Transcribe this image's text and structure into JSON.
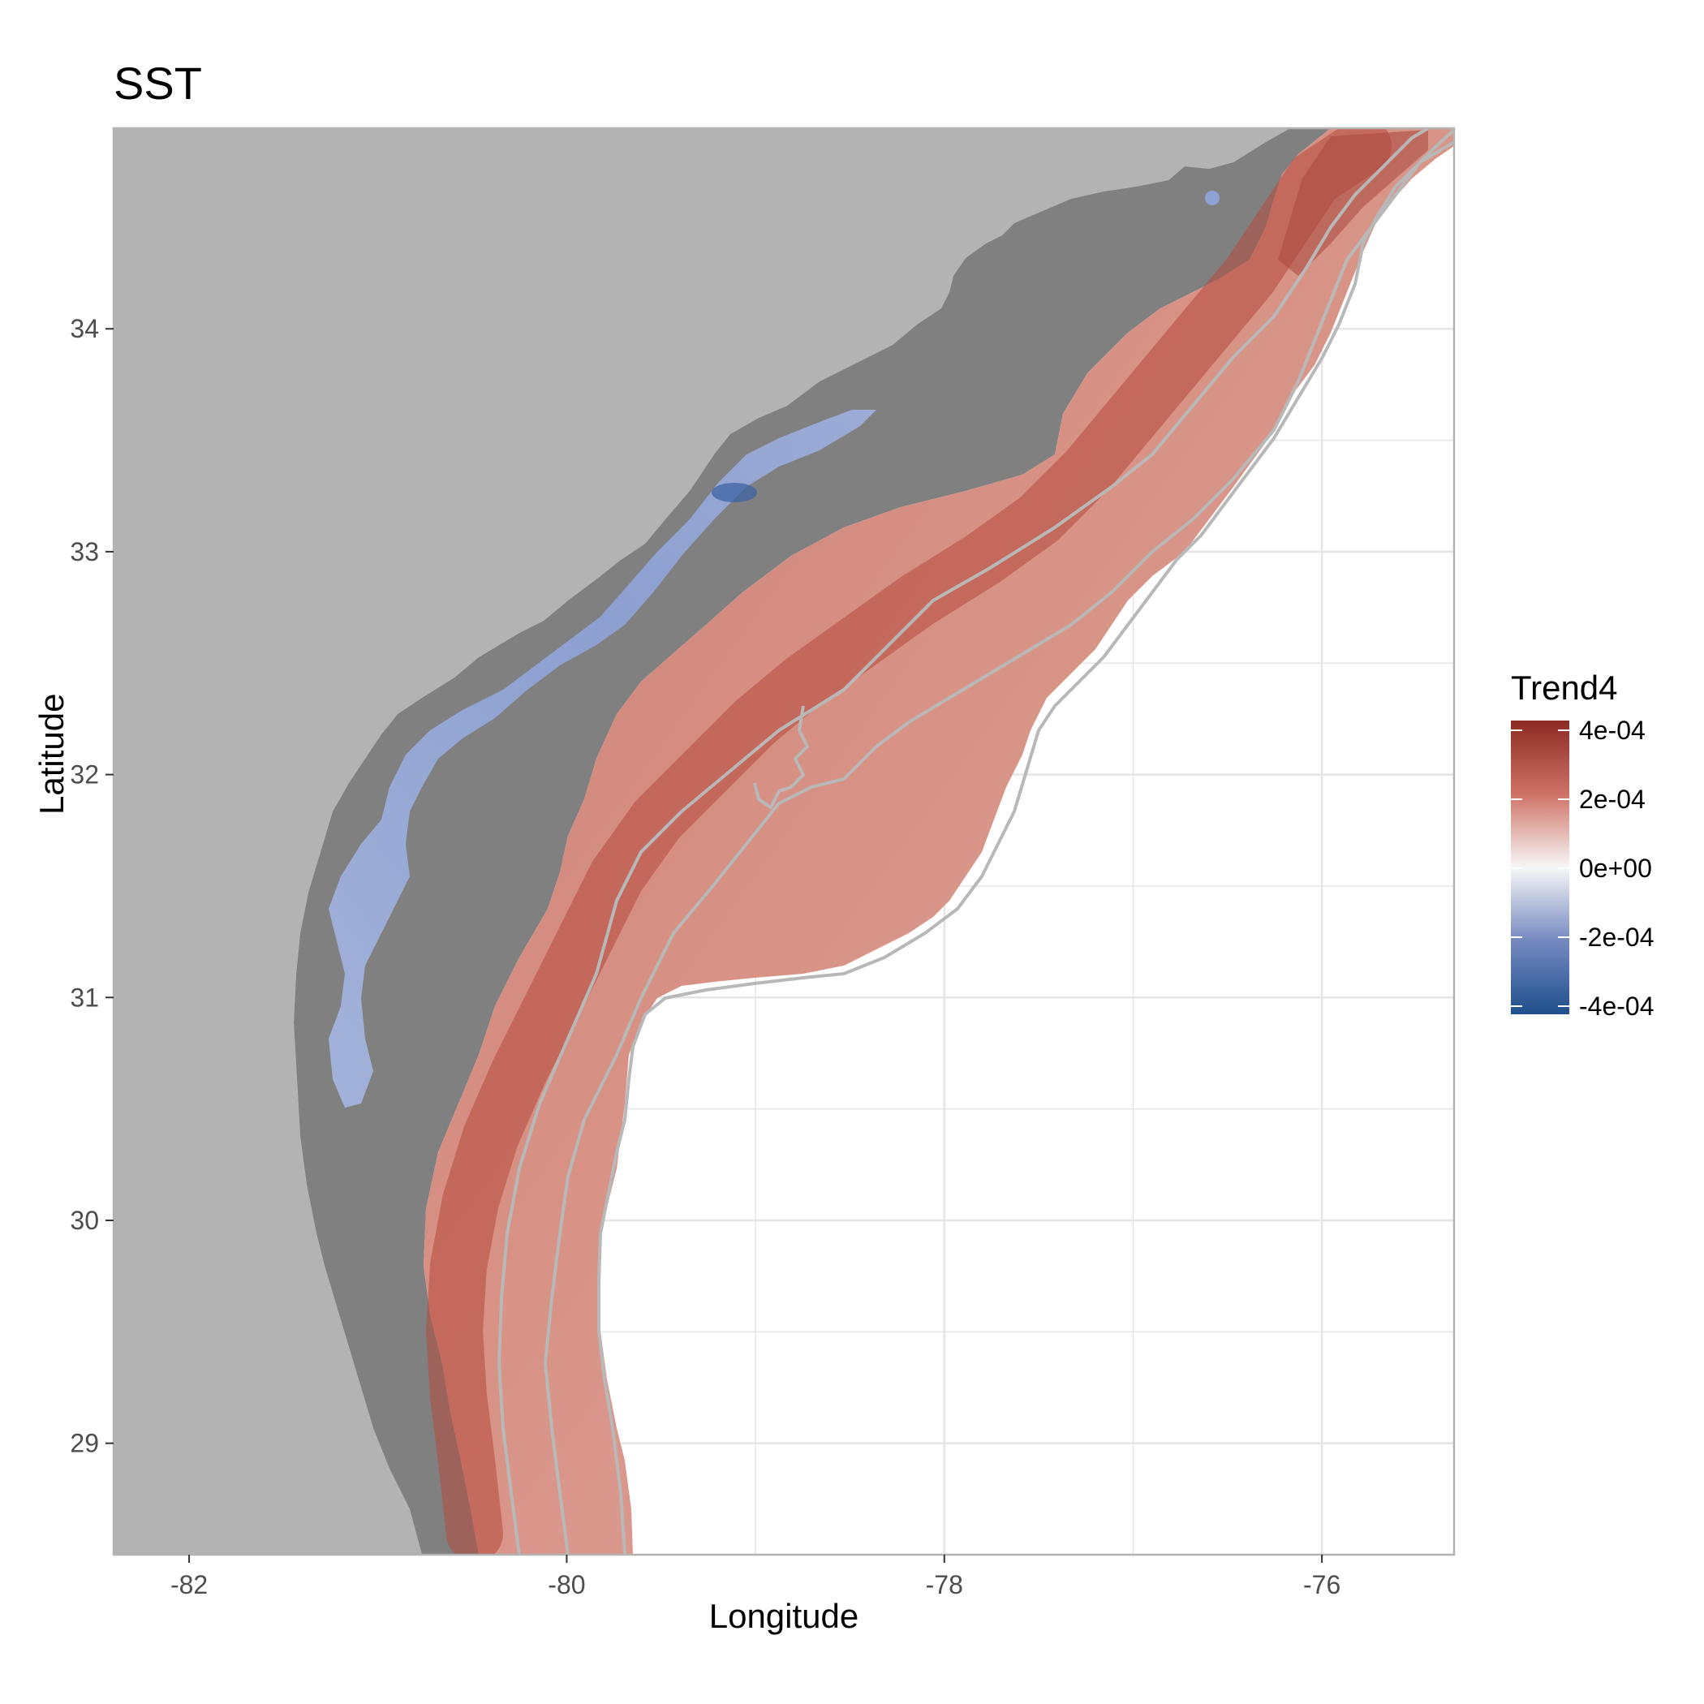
{
  "chart_data": {
    "type": "map",
    "title": "SST",
    "xlabel": "Longitude",
    "ylabel": "Latitude",
    "xlim": [
      -82.4,
      -75.3
    ],
    "ylim": [
      28.5,
      34.9
    ],
    "x_ticks": [
      -82,
      -80,
      -78,
      -76
    ],
    "y_ticks": [
      29,
      30,
      31,
      32,
      33,
      34
    ],
    "x_tick_labels": [
      "-82",
      "-80",
      "-78",
      "-76"
    ],
    "y_tick_labels": [
      "29",
      "30",
      "31",
      "32",
      "33",
      "34"
    ],
    "grid": true,
    "legend": {
      "title": "Trend4",
      "placement": "right",
      "labels": [
        "4e-04",
        "2e-04",
        "0e+00",
        "-2e-04",
        "-4e-04"
      ],
      "values": [
        0.0004,
        0.0002,
        0,
        -0.0002,
        -0.0004
      ],
      "colors": {
        "high": "#8b2a22",
        "mid": "#f7f7f7",
        "low": "#1e4f8c"
      }
    },
    "colors": {
      "land": "#b3b3b3",
      "no_data": "#808080",
      "contour": "#b8b8b8",
      "panel_border": "#b3b3b3",
      "gridline": "#e5e5e5"
    },
    "regions": {
      "nearshore_negative_trend": [
        -0.00018,
        -0.00012,
        -0.00022,
        -0.00035
      ],
      "shelf_positive_trend": [
        0.00024,
        0.0002,
        0.00017,
        0.00011
      ],
      "shelf_edge_peak_trend": [
        0.00036,
        0.0004
      ]
    }
  }
}
